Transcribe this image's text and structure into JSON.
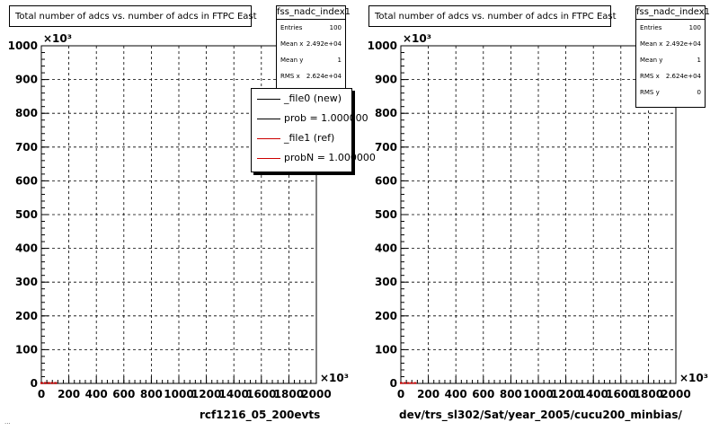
{
  "footer_text": "...",
  "pads": [
    {
      "title": "Total number of adcs vs. number of adcs in FTPC East",
      "stats": {
        "name": "fss_nadc_index1",
        "rows": [
          {
            "label": "Entries",
            "value": "100"
          },
          {
            "label": "Mean x",
            "value": "2.492e+04"
          },
          {
            "label": "Mean y",
            "value": "1"
          },
          {
            "label": "RMS x",
            "value": "2.624e+04"
          }
        ]
      },
      "legend": [
        {
          "label": "_file0 (new)",
          "color": "#000000"
        },
        {
          "label": "prob = 1.000000",
          "color": "#000000"
        },
        {
          "label": "_file1 (ref)",
          "color": "#cc0000"
        },
        {
          "label": "probN = 1.000000",
          "color": "#cc0000"
        }
      ],
      "run_label": "rcf1216_05_200evts"
    },
    {
      "title": "Total number of adcs vs. number of adcs in FTPC East",
      "stats": {
        "name": "fss_nadc_index1",
        "rows": [
          {
            "label": "Entries",
            "value": "100"
          },
          {
            "label": "Mean x",
            "value": "2.492e+04"
          },
          {
            "label": "Mean y",
            "value": "1"
          },
          {
            "label": "RMS x",
            "value": "2.624e+04"
          },
          {
            "label": "RMS y",
            "value": "0"
          }
        ]
      },
      "legend": [],
      "run_label": "dev/trs_sl302/Sat/year_2005/cucu200_minbias/"
    }
  ],
  "chart_data": [
    {
      "type": "scatter",
      "title": "Total number of adcs vs. number of adcs in FTPC East",
      "xlim": [
        0,
        2000
      ],
      "ylim": [
        0,
        1000
      ],
      "x_exponent": "×10³",
      "y_exponent": "×10³",
      "x_ticks": [
        "0",
        "200",
        "400",
        "600",
        "800",
        "1000",
        "1200",
        "1400",
        "1600",
        "1800",
        "2000"
      ],
      "y_ticks": [
        "0",
        "100",
        "200",
        "300",
        "400",
        "500",
        "600",
        "700",
        "800",
        "900",
        "1000"
      ],
      "grid": true,
      "legend_position": "top-right",
      "series": [
        {
          "name": "_file0 (new)",
          "color": "#000000",
          "x": [
            0,
            25,
            50,
            75,
            100
          ],
          "y": [
            1,
            1,
            1,
            1,
            1
          ]
        },
        {
          "name": "_file1 (ref)",
          "color": "#cc0000",
          "x": [
            0,
            25,
            50,
            75,
            100
          ],
          "y": [
            1,
            1,
            1,
            1,
            1
          ]
        }
      ]
    },
    {
      "type": "scatter",
      "title": "Total number of adcs vs. number of adcs in FTPC East",
      "xlim": [
        0,
        2000
      ],
      "ylim": [
        0,
        1000
      ],
      "x_exponent": "×10³",
      "y_exponent": "×10³",
      "x_ticks": [
        "0",
        "200",
        "400",
        "600",
        "800",
        "1000",
        "1200",
        "1400",
        "1600",
        "1800",
        "2000"
      ],
      "y_ticks": [
        "0",
        "100",
        "200",
        "300",
        "400",
        "500",
        "600",
        "700",
        "800",
        "900",
        "1000"
      ],
      "grid": true,
      "series": [
        {
          "color": "#cc0000",
          "x": [
            0,
            25,
            50,
            75,
            100
          ],
          "y": [
            1,
            1,
            1,
            1,
            1
          ]
        }
      ]
    }
  ]
}
